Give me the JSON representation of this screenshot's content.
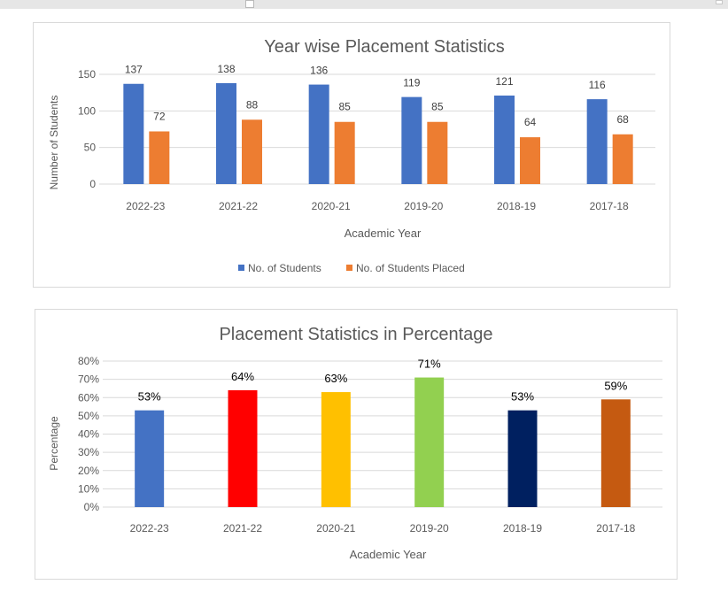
{
  "chart_data": [
    {
      "type": "bar",
      "title": "Year wise Placement Statistics",
      "xlabel": "Academic Year",
      "ylabel": "Number of Students",
      "categories": [
        "2022-23",
        "2021-22",
        "2020-21",
        "2019-20",
        "2018-19",
        "2017-18"
      ],
      "series": [
        {
          "name": "No. of Students",
          "values": [
            137,
            138,
            136,
            119,
            121,
            116
          ],
          "color": "#4472c4"
        },
        {
          "name": "No. of Students Placed",
          "values": [
            72,
            88,
            85,
            85,
            64,
            68
          ],
          "color": "#ed7d31"
        }
      ],
      "yticks": [
        "0",
        "50",
        "100",
        "150"
      ],
      "ylim": [
        0,
        150
      ],
      "grid": true,
      "legend": "bottom"
    },
    {
      "type": "bar",
      "title": "Placement Statistics in Percentage",
      "xlabel": "Academic Year",
      "ylabel": "Percentage",
      "categories": [
        "2022-23",
        "2021-22",
        "2020-21",
        "2019-20",
        "2018-19",
        "2017-18"
      ],
      "values": [
        53,
        64,
        63,
        71,
        53,
        59
      ],
      "data_labels": [
        "53%",
        "64%",
        "63%",
        "71%",
        "53%",
        "59%"
      ],
      "colors": [
        "#4472c4",
        "#ff0000",
        "#ffc000",
        "#92d050",
        "#002060",
        "#c55a11"
      ],
      "yticks": [
        "0%",
        "10%",
        "20%",
        "30%",
        "40%",
        "50%",
        "60%",
        "70%",
        "80%"
      ],
      "ylim": [
        0,
        80
      ],
      "grid": true,
      "legend": "none"
    }
  ]
}
